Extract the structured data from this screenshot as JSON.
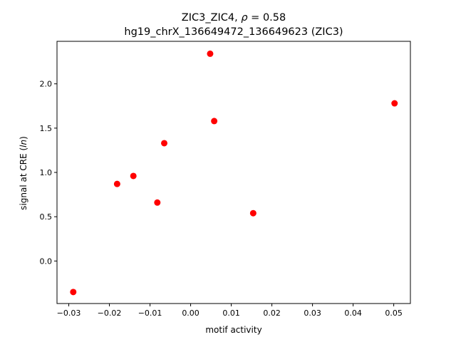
{
  "chart_data": {
    "type": "scatter",
    "title_line1": "ZIC3_ZIC4, ρ = 0.58",
    "title_line2": "hg19_chrX_136649472_136649623 (ZIC3)",
    "xlabel": "motif activity",
    "ylabel": "signal at CRE (ln)",
    "xlim": [
      -0.0329,
      0.0541
    ],
    "ylim": [
      -0.48,
      2.48
    ],
    "xticks": [
      -0.03,
      -0.02,
      -0.01,
      0.0,
      0.01,
      0.02,
      0.03,
      0.04,
      0.05
    ],
    "xtick_labels": [
      "−0.03",
      "−0.02",
      "−0.01",
      "0.00",
      "0.01",
      "0.02",
      "0.03",
      "0.04",
      "0.05"
    ],
    "yticks": [
      0.0,
      0.5,
      1.0,
      1.5,
      2.0
    ],
    "ytick_labels": [
      "0.0",
      "0.5",
      "1.0",
      "1.5",
      "2.0"
    ],
    "marker_color": "#ff0000",
    "grid": false,
    "points": [
      {
        "x": -0.0289,
        "y": -0.35
      },
      {
        "x": -0.0181,
        "y": 0.87
      },
      {
        "x": -0.0141,
        "y": 0.96
      },
      {
        "x": -0.0082,
        "y": 0.66
      },
      {
        "x": -0.0065,
        "y": 1.33
      },
      {
        "x": 0.0048,
        "y": 2.34
      },
      {
        "x": 0.0058,
        "y": 1.58
      },
      {
        "x": 0.0154,
        "y": 0.54
      },
      {
        "x": 0.0502,
        "y": 1.78
      }
    ]
  }
}
